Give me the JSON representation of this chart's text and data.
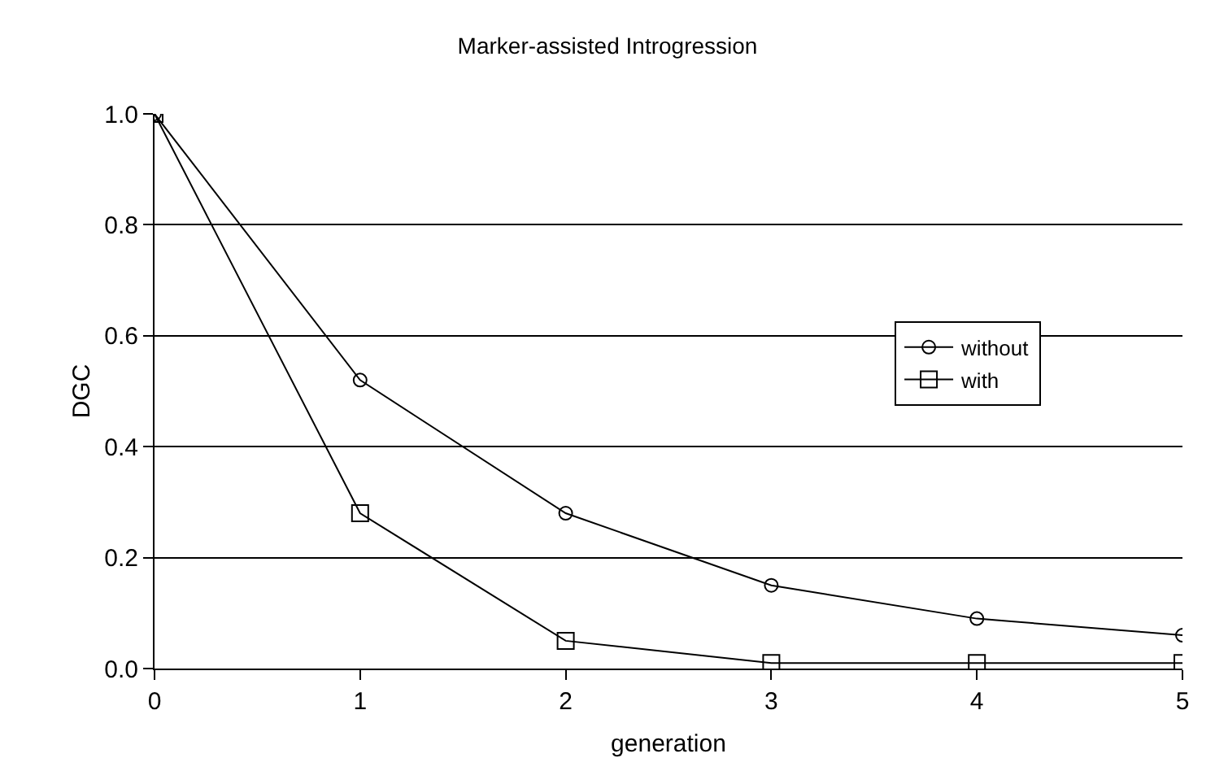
{
  "chart_data": {
    "type": "line",
    "title": "Marker-assisted Introgression",
    "xlabel": "generation",
    "ylabel": "DGC",
    "x": [
      0,
      1,
      2,
      3,
      4,
      5
    ],
    "series": [
      {
        "name": "without",
        "color": "#000000",
        "marker": "circle",
        "values": [
          1.0,
          0.52,
          0.28,
          0.15,
          0.09,
          0.06
        ]
      },
      {
        "name": "with",
        "color": "#000000",
        "marker": "square",
        "values": [
          1.0,
          0.28,
          0.05,
          0.01,
          0.01,
          0.01
        ]
      }
    ],
    "xlim": [
      0,
      5
    ],
    "xticks": [
      0,
      1,
      2,
      3,
      4,
      5
    ],
    "ylim": [
      0,
      1
    ],
    "yticks": [
      {
        "value": 0,
        "label": "0.0"
      },
      {
        "value": 0.2,
        "label": "0.2"
      },
      {
        "value": 0.4,
        "label": "0.4"
      },
      {
        "value": 0.6,
        "label": "0.6"
      },
      {
        "value": 0.8,
        "label": "0.8"
      },
      {
        "value": 1,
        "label": "1.0"
      }
    ],
    "grid": "y",
    "legend": "right",
    "line_style": "solid"
  }
}
